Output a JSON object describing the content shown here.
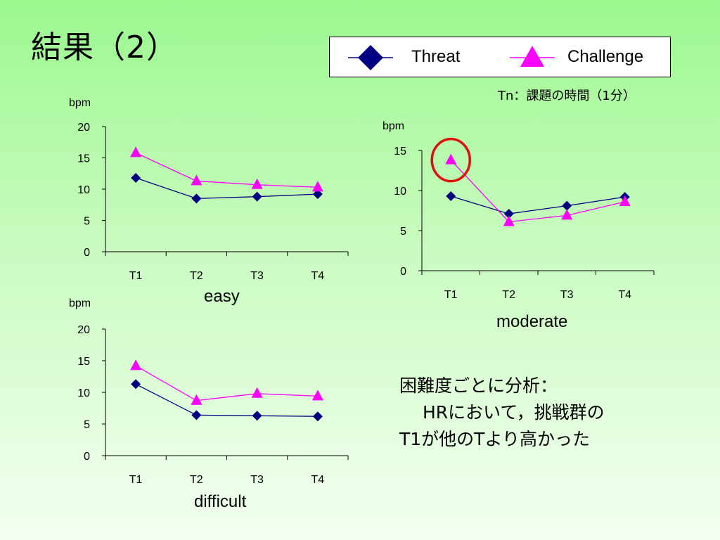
{
  "slide": {
    "title": "結果（2）",
    "note": "Tn：課題の時間（1分）",
    "conclusion_line1": "困難度ごとに分析：",
    "conclusion_line2": "　 HRにおいて，挑戦群の",
    "conclusion_line3": "T1が他のTより高かった"
  },
  "legend": {
    "series": [
      {
        "name": "Threat",
        "color": "#000080",
        "marker": "diamond"
      },
      {
        "name": "Challenge",
        "color": "#ff00ff",
        "marker": "triangle"
      }
    ]
  },
  "colors": {
    "highlight_circle": "#e01010"
  },
  "chart_data": [
    {
      "type": "line",
      "title": "easy",
      "ylabel": "bpm",
      "categories": [
        "T1",
        "T2",
        "T3",
        "T4"
      ],
      "ylim": [
        0,
        20
      ],
      "yticks": [
        0,
        5,
        10,
        15,
        20
      ],
      "series": [
        {
          "name": "Threat",
          "values": [
            11.8,
            8.5,
            8.8,
            9.2
          ]
        },
        {
          "name": "Challenge",
          "values": [
            15.8,
            11.3,
            10.7,
            10.3
          ]
        }
      ]
    },
    {
      "type": "line",
      "title": "moderate",
      "ylabel": "bpm",
      "categories": [
        "T1",
        "T2",
        "T3",
        "T4"
      ],
      "ylim": [
        0,
        15
      ],
      "yticks": [
        0,
        5,
        10,
        15
      ],
      "highlight": {
        "series": "Challenge",
        "category": "T1"
      },
      "series": [
        {
          "name": "Threat",
          "values": [
            9.3,
            7.1,
            8.1,
            9.2
          ]
        },
        {
          "name": "Challenge",
          "values": [
            13.8,
            6.1,
            6.9,
            8.6
          ]
        }
      ]
    },
    {
      "type": "line",
      "title": "difficult",
      "ylabel": "bpm",
      "categories": [
        "T1",
        "T2",
        "T3",
        "T4"
      ],
      "ylim": [
        0,
        20
      ],
      "yticks": [
        0,
        5,
        10,
        15,
        20
      ],
      "series": [
        {
          "name": "Threat",
          "values": [
            11.3,
            6.4,
            6.3,
            6.2
          ]
        },
        {
          "name": "Challenge",
          "values": [
            14.2,
            8.7,
            9.8,
            9.4
          ]
        }
      ]
    }
  ]
}
